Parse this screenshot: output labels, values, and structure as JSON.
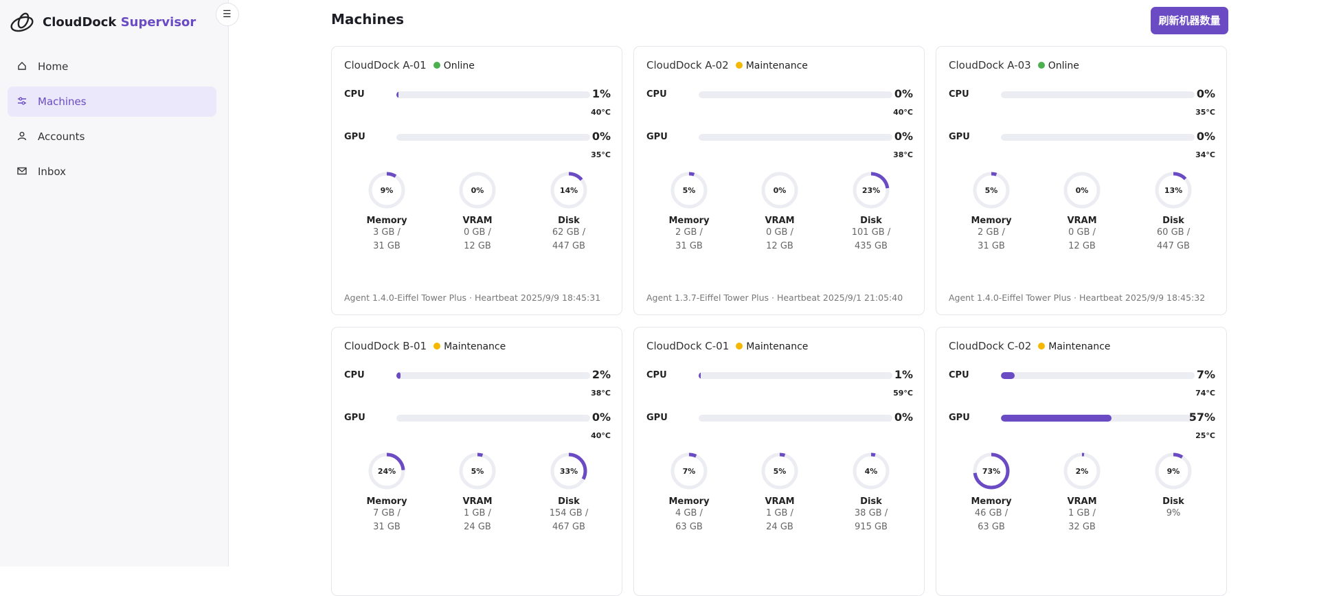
{
  "sidebar": {
    "brand": "CloudDock",
    "brand_accent": "Supervisor",
    "toggle": "☰",
    "nav": [
      {
        "label": "Home"
      },
      {
        "label": "Machines",
        "active": true
      },
      {
        "label": "Accounts"
      },
      {
        "label": "Inbox"
      }
    ]
  },
  "header": {
    "title": "Machines",
    "button": "刷新机器数量"
  },
  "machines": [
    {
      "name": "CloudDock A-01",
      "status": "Online",
      "dot_color": "#4caf50",
      "bars": [
        {
          "name": "CPU",
          "value": 1,
          "label": "1%",
          "temp": "40°C"
        },
        {
          "name": "GPU",
          "value": 0,
          "label": "0%",
          "temp": "35°C"
        }
      ],
      "rings": [
        {
          "name": "Memory",
          "value": 9,
          "label": "9%",
          "detail": [
            "3 GB /",
            "31 GB"
          ]
        },
        {
          "name": "VRAM",
          "value": 0,
          "label": "0%",
          "detail": [
            "0 GB /",
            "12 GB"
          ]
        },
        {
          "name": "Disk",
          "value": 14,
          "label": "14%",
          "detail": [
            "62 GB /",
            "447 GB"
          ]
        }
      ],
      "footer": "Agent 1.4.0-Eiffel Tower Plus · Heartbeat 2025/9/9 18:45:31"
    },
    {
      "name": "CloudDock A-02",
      "status": "Maintenance",
      "dot_color": "#f5b800",
      "bars": [
        {
          "name": "CPU",
          "value": 0,
          "label": "0%",
          "temp": "40°C"
        },
        {
          "name": "GPU",
          "value": 0,
          "label": "0%",
          "temp": "38°C"
        }
      ],
      "rings": [
        {
          "name": "Memory",
          "value": 5,
          "label": "5%",
          "detail": [
            "2 GB /",
            "31 GB"
          ]
        },
        {
          "name": "VRAM",
          "value": 0,
          "label": "0%",
          "detail": [
            "0 GB /",
            "12 GB"
          ]
        },
        {
          "name": "Disk",
          "value": 23,
          "label": "23%",
          "detail": [
            "101 GB /",
            "435 GB"
          ]
        }
      ],
      "footer": "Agent 1.3.7-Eiffel Tower Plus · Heartbeat 2025/9/1 21:05:40"
    },
    {
      "name": "CloudDock A-03",
      "status": "Online",
      "dot_color": "#4caf50",
      "bars": [
        {
          "name": "CPU",
          "value": 0,
          "label": "0%",
          "temp": "35°C"
        },
        {
          "name": "GPU",
          "value": 0,
          "label": "0%",
          "temp": "34°C"
        }
      ],
      "rings": [
        {
          "name": "Memory",
          "value": 5,
          "label": "5%",
          "detail": [
            "2 GB /",
            "31 GB"
          ]
        },
        {
          "name": "VRAM",
          "value": 0,
          "label": "0%",
          "detail": [
            "0 GB /",
            "12 GB"
          ]
        },
        {
          "name": "Disk",
          "value": 13,
          "label": "13%",
          "detail": [
            "60 GB /",
            "447 GB"
          ]
        }
      ],
      "footer": "Agent 1.4.0-Eiffel Tower Plus · Heartbeat 2025/9/9 18:45:32"
    },
    {
      "name": "CloudDock B-01",
      "status": "Maintenance",
      "dot_color": "#f5b800",
      "bars": [
        {
          "name": "CPU",
          "value": 2,
          "label": "2%",
          "temp": "38°C"
        },
        {
          "name": "GPU",
          "value": 0,
          "label": "0%",
          "temp": "40°C"
        }
      ],
      "rings": [
        {
          "name": "Memory",
          "value": 24,
          "label": "24%",
          "detail": [
            "7 GB /",
            "31 GB"
          ]
        },
        {
          "name": "VRAM",
          "value": 5,
          "label": "5%",
          "detail": [
            "1 GB /",
            "24 GB"
          ]
        },
        {
          "name": "Disk",
          "value": 33,
          "label": "33%",
          "detail": [
            "154 GB /",
            "467 GB"
          ]
        }
      ]
    },
    {
      "name": "CloudDock C-01",
      "status": "Maintenance",
      "dot_color": "#f5b800",
      "bars": [
        {
          "name": "CPU",
          "value": 1,
          "label": "1%",
          "temp": "59°C"
        },
        {
          "name": "GPU",
          "value": 0,
          "label": "0%"
        }
      ],
      "rings": [
        {
          "name": "Memory",
          "value": 7,
          "label": "7%",
          "detail": [
            "4 GB /",
            "63 GB"
          ]
        },
        {
          "name": "VRAM",
          "value": 5,
          "label": "5%",
          "detail": [
            "1 GB /",
            "24 GB"
          ]
        },
        {
          "name": "Disk",
          "value": 4,
          "label": "4%",
          "detail": [
            "38 GB /",
            "915 GB"
          ]
        }
      ]
    },
    {
      "name": "CloudDock C-02",
      "status": "Maintenance",
      "dot_color": "#f5b800",
      "bars": [
        {
          "name": "CPU",
          "value": 7,
          "label": "7%",
          "temp": "74°C"
        },
        {
          "name": "GPU",
          "value": 57,
          "label": "57%",
          "temp": "25°C"
        }
      ],
      "rings": [
        {
          "name": "Memory",
          "value": 73,
          "label": "73%",
          "detail": [
            "46 GB /",
            "63 GB"
          ]
        },
        {
          "name": "VRAM",
          "value": 2,
          "label": "2%",
          "detail": [
            "1 GB /",
            "32 GB"
          ]
        },
        {
          "name": "Disk",
          "value": 9,
          "label": "9%",
          "detail": [
            "9%"
          ]
        }
      ]
    }
  ]
}
